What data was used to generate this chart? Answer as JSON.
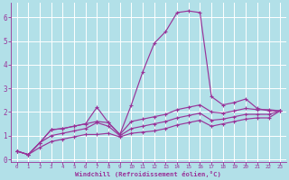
{
  "background_color": "#b2e0e8",
  "grid_color": "#ffffff",
  "line_color": "#993399",
  "xlabel": "Windchill (Refroidissement éolien,°C)",
  "xlabel_color": "#993399",
  "tick_color": "#993399",
  "xlim": [
    -0.5,
    23.5
  ],
  "ylim": [
    -0.1,
    6.6
  ],
  "yticks": [
    0,
    1,
    2,
    3,
    4,
    5,
    6
  ],
  "xticks": [
    0,
    1,
    2,
    3,
    4,
    5,
    6,
    7,
    8,
    9,
    10,
    11,
    12,
    13,
    14,
    15,
    16,
    17,
    18,
    19,
    20,
    21,
    22,
    23
  ],
  "series": [
    [
      0.35,
      0.2,
      0.7,
      1.25,
      1.3,
      1.4,
      1.5,
      2.2,
      1.55,
      1.05,
      2.3,
      3.7,
      4.9,
      5.4,
      6.2,
      6.27,
      6.2,
      2.65,
      2.3,
      2.4,
      2.55,
      2.15,
      2.05,
      2.05
    ],
    [
      0.35,
      0.2,
      0.7,
      1.25,
      1.3,
      1.4,
      1.5,
      1.6,
      1.55,
      1.05,
      1.6,
      1.7,
      1.8,
      1.9,
      2.1,
      2.2,
      2.3,
      2.0,
      1.95,
      2.05,
      2.15,
      2.1,
      2.1,
      2.05
    ],
    [
      0.35,
      0.2,
      0.7,
      1.0,
      1.1,
      1.2,
      1.3,
      1.55,
      1.4,
      1.0,
      1.3,
      1.4,
      1.5,
      1.6,
      1.75,
      1.85,
      1.95,
      1.65,
      1.7,
      1.8,
      1.9,
      1.9,
      1.9,
      2.05
    ],
    [
      0.35,
      0.2,
      0.5,
      0.75,
      0.85,
      0.95,
      1.05,
      1.05,
      1.1,
      0.95,
      1.1,
      1.15,
      1.2,
      1.3,
      1.45,
      1.55,
      1.65,
      1.4,
      1.5,
      1.6,
      1.7,
      1.75,
      1.75,
      2.05
    ]
  ]
}
